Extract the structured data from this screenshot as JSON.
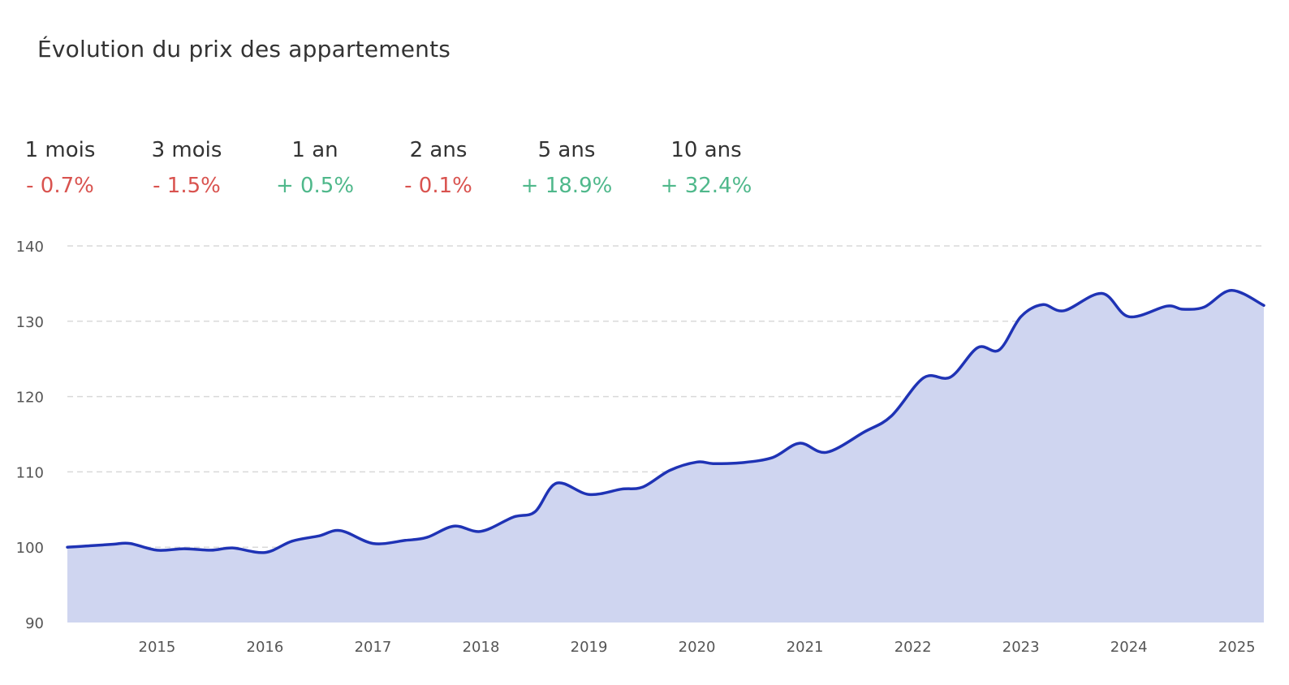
{
  "title": "Évolution du prix des appartements",
  "periods": [
    {
      "label": "1 mois",
      "change": "- 0.7%",
      "trend": "down"
    },
    {
      "label": "3 mois",
      "change": "- 1.5%",
      "trend": "down"
    },
    {
      "label": "1 an",
      "change": "+ 0.5%",
      "trend": "up"
    },
    {
      "label": "2 ans",
      "change": "- 0.1%",
      "trend": "down"
    },
    {
      "label": "5 ans",
      "change": "+ 18.9%",
      "trend": "up"
    },
    {
      "label": "10 ans",
      "change": "+ 32.4%",
      "trend": "up"
    }
  ],
  "colors": {
    "down": "#d9534f",
    "up": "#4fb88b",
    "line": "#1f33b5",
    "area": "#cfd5f0",
    "grid": "#d9d9d9"
  },
  "chart_data": {
    "type": "area",
    "title": "",
    "xlabel": "",
    "ylabel": "",
    "ylim": [
      90,
      140
    ],
    "xlim": [
      2014.17,
      2025.25
    ],
    "yticks": [
      90,
      100,
      110,
      120,
      130,
      140
    ],
    "xticks": [
      "2015",
      "2016",
      "2017",
      "2018",
      "2019",
      "2020",
      "2021",
      "2022",
      "2023",
      "2024",
      "2025"
    ],
    "grid": "horizontal dashed",
    "series": [
      {
        "name": "",
        "x": [
          2014.17,
          2014.4,
          2014.6,
          2014.75,
          2015.0,
          2015.25,
          2015.5,
          2015.7,
          2016.0,
          2016.25,
          2016.5,
          2016.7,
          2017.0,
          2017.3,
          2017.5,
          2017.75,
          2018.0,
          2018.3,
          2018.5,
          2018.7,
          2019.0,
          2019.3,
          2019.5,
          2019.75,
          2020.0,
          2020.15,
          2020.4,
          2020.7,
          2020.95,
          2021.2,
          2021.55,
          2021.8,
          2022.1,
          2022.35,
          2022.6,
          2022.8,
          2023.0,
          2023.2,
          2023.4,
          2023.75,
          2024.0,
          2024.35,
          2024.5,
          2024.7,
          2024.95,
          2025.25
        ],
        "y": [
          100.0,
          100.2,
          100.4,
          100.5,
          99.6,
          99.8,
          99.6,
          99.9,
          99.3,
          100.8,
          101.5,
          102.2,
          100.5,
          100.9,
          101.3,
          102.8,
          102.1,
          104.0,
          104.7,
          108.5,
          107.0,
          107.7,
          108.0,
          110.2,
          111.3,
          111.1,
          111.2,
          111.9,
          113.8,
          112.6,
          115.3,
          117.4,
          122.5,
          122.6,
          126.5,
          126.2,
          130.6,
          132.2,
          131.4,
          133.7,
          130.6,
          132.0,
          131.6,
          131.9,
          134.1,
          132.1
        ]
      }
    ]
  }
}
